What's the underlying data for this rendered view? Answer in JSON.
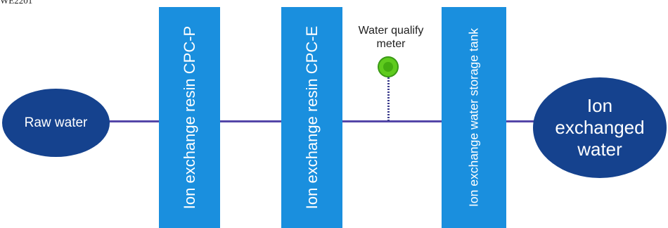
{
  "header": {
    "code": "WE2201"
  },
  "diagram": {
    "source_node": {
      "label": "Raw water"
    },
    "target_node": {
      "label_lines": [
        "Ion",
        "exchanged",
        "water"
      ]
    },
    "stages": [
      {
        "label": "Ion exchange resin CPC-P"
      },
      {
        "label": "Ion exchange resin CPC-E"
      },
      {
        "label": "Ion exchange water  storage tank"
      }
    ],
    "meter": {
      "label_lines": [
        "Water qualify",
        "meter"
      ],
      "icon": "green-indicator-dot"
    }
  },
  "colors": {
    "node": "#15428e",
    "stage": "#1a8fde",
    "flow_line": "#5446a8",
    "meter_dot": "#5fcb1e"
  }
}
